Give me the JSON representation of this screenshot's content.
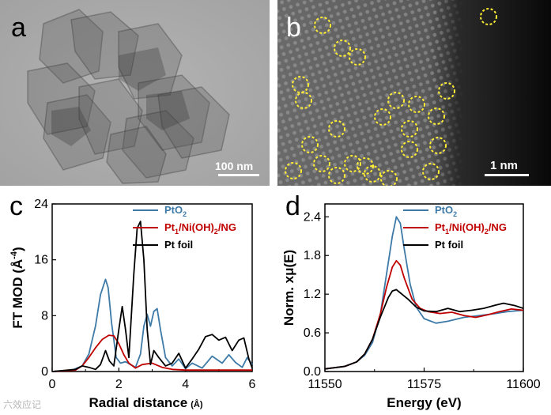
{
  "panels": {
    "a": {
      "letter": "a",
      "scale_label": "100 nm"
    },
    "b": {
      "letter": "b",
      "scale_label": "1 nm"
    },
    "c": {
      "letter": "c"
    },
    "d": {
      "letter": "d"
    }
  },
  "watermark": "六效应记",
  "colors": {
    "pto2": "#3d7aa7",
    "pt1": "#c00000",
    "ptfoil": "#000000",
    "circle": "#ffee33"
  },
  "chart_data": [
    {
      "id": "c",
      "type": "line",
      "title": "",
      "xlabel": "Radial distance",
      "xlabel_unit": "(Å)",
      "ylabel": "FT MOD (Å",
      "ylabel_sup": "-4",
      "ylabel_tail": ")",
      "xlim": [
        0,
        6
      ],
      "ylim": [
        0,
        24
      ],
      "xticks": [
        "0",
        "2",
        "4",
        "6"
      ],
      "yticks": [
        "0",
        "8",
        "16",
        "24"
      ],
      "legend": [
        "PtO₂",
        "Pt₁/Ni(OH)₂/NG",
        "Pt foil"
      ],
      "legend_parts": [
        {
          "main": "PtO",
          "sub": "2",
          "tail": ""
        },
        {
          "main": "Pt",
          "sub": "1",
          "tail": "/Ni(OH)",
          "sub2": "2",
          "tail2": "/NG"
        },
        {
          "main": "Pt foil",
          "sub": "",
          "tail": ""
        }
      ],
      "series": [
        {
          "name": "PtO₂",
          "color_key": "pto2",
          "x": [
            0,
            0.6,
            0.9,
            1.1,
            1.3,
            1.45,
            1.6,
            1.68,
            1.78,
            1.92,
            2.05,
            2.2,
            2.35,
            2.5,
            2.65,
            2.75,
            2.85,
            2.95,
            3.05,
            3.15,
            3.25,
            3.4,
            3.6,
            3.8,
            4.0,
            4.2,
            4.5,
            4.8,
            5.1,
            5.3,
            5.5,
            5.7,
            5.85,
            6.0
          ],
          "y": [
            0,
            0.2,
            0.8,
            2.5,
            6.5,
            11.0,
            13.2,
            12.0,
            7.0,
            2.0,
            1.2,
            1.4,
            1.0,
            0.6,
            2.5,
            6.5,
            8.2,
            6.5,
            8.6,
            9.0,
            6.0,
            2.0,
            0.8,
            1.8,
            0.4,
            1.2,
            0.5,
            2.2,
            1.2,
            2.4,
            1.3,
            0.6,
            2.0,
            1.0
          ]
        },
        {
          "name": "Pt₁/Ni(OH)₂/NG",
          "color_key": "pt1",
          "x": [
            0,
            0.7,
            0.9,
            1.1,
            1.3,
            1.5,
            1.7,
            1.85,
            2.0,
            2.15,
            2.3,
            2.5,
            2.7,
            3.0,
            3.3,
            3.6,
            4.0,
            4.5,
            5.0,
            5.5,
            6.0
          ],
          "y": [
            0,
            0.2,
            0.8,
            2.0,
            3.4,
            4.6,
            5.2,
            5.1,
            4.0,
            2.4,
            1.2,
            0.5,
            1.0,
            1.2,
            0.6,
            0.3,
            0.2,
            0.2,
            0.2,
            0.2,
            0.2
          ]
        },
        {
          "name": "Pt foil",
          "color_key": "ptfoil",
          "x": [
            0,
            0.7,
            0.9,
            1.1,
            1.3,
            1.45,
            1.6,
            1.72,
            1.85,
            2.0,
            2.1,
            2.2,
            2.3,
            2.45,
            2.55,
            2.65,
            2.75,
            2.85,
            2.95,
            3.05,
            3.2,
            3.4,
            3.6,
            3.8,
            4.0,
            4.2,
            4.4,
            4.6,
            4.8,
            5.0,
            5.2,
            5.4,
            5.6,
            5.75,
            5.9,
            6.0
          ],
          "y": [
            0,
            0.3,
            0.8,
            0.6,
            0.3,
            1.0,
            3.0,
            1.5,
            0.8,
            6.0,
            9.3,
            6.0,
            2.0,
            14.0,
            20.5,
            21.5,
            16.0,
            6.0,
            1.0,
            3.0,
            2.0,
            0.8,
            1.2,
            2.6,
            0.5,
            1.8,
            3.2,
            5.0,
            5.3,
            4.5,
            4.9,
            3.0,
            4.5,
            4.8,
            1.8,
            0.5
          ]
        }
      ]
    },
    {
      "id": "d",
      "type": "line",
      "title": "",
      "xlabel": "Energy (eV)",
      "ylabel": "Norm. xμ(E)",
      "xlim": [
        11550,
        11600
      ],
      "ylim": [
        0.0,
        2.6
      ],
      "xticks": [
        "11550",
        "11575",
        "11600"
      ],
      "yticks": [
        "0.0",
        "0.6",
        "1.2",
        "1.8",
        "2.4"
      ],
      "legend": [
        "PtO₂",
        "Pt₁/Ni(OH)₂/NG",
        "Pt foil"
      ],
      "legend_parts": [
        {
          "main": "PtO",
          "sub": "2",
          "tail": ""
        },
        {
          "main": "Pt",
          "sub": "1",
          "tail": "/Ni(OH)",
          "sub2": "2",
          "tail2": "/NG"
        },
        {
          "main": "Pt foil",
          "sub": "",
          "tail": ""
        }
      ],
      "series": [
        {
          "name": "PtO₂",
          "color_key": "pto2",
          "x": [
            11550,
            11555,
            11558,
            11560,
            11562,
            11564,
            11565.5,
            11567,
            11568,
            11569,
            11570,
            11571.5,
            11573,
            11575,
            11578,
            11581,
            11585,
            11589,
            11593,
            11596,
            11600
          ],
          "y": [
            0.04,
            0.08,
            0.15,
            0.25,
            0.45,
            0.9,
            1.5,
            2.1,
            2.4,
            2.3,
            1.9,
            1.35,
            1.0,
            0.82,
            0.75,
            0.78,
            0.84,
            0.87,
            0.9,
            0.93,
            0.95
          ]
        },
        {
          "name": "Pt₁/Ni(OH)₂/NG",
          "color_key": "pt1",
          "x": [
            11550,
            11555,
            11558,
            11560,
            11562,
            11564,
            11565.5,
            11567,
            11568,
            11569,
            11570,
            11572,
            11574,
            11576,
            11579,
            11582,
            11585,
            11588,
            11591,
            11594,
            11597,
            11600
          ],
          "y": [
            0.04,
            0.08,
            0.15,
            0.27,
            0.5,
            0.9,
            1.3,
            1.62,
            1.72,
            1.65,
            1.45,
            1.12,
            0.98,
            0.93,
            0.9,
            0.92,
            0.87,
            0.84,
            0.88,
            0.93,
            0.97,
            0.95
          ]
        },
        {
          "name": "Pt foil",
          "color_key": "ptfoil",
          "x": [
            11550,
            11555,
            11558,
            11560,
            11562,
            11564,
            11566,
            11567,
            11568,
            11569,
            11571,
            11573,
            11575,
            11578,
            11581,
            11584,
            11587,
            11590,
            11593,
            11595,
            11598,
            11600
          ],
          "y": [
            0.04,
            0.08,
            0.15,
            0.27,
            0.5,
            0.85,
            1.15,
            1.25,
            1.27,
            1.22,
            1.12,
            1.0,
            0.94,
            0.93,
            0.98,
            0.93,
            0.95,
            0.98,
            1.03,
            1.06,
            1.02,
            0.98
          ]
        }
      ]
    }
  ]
}
